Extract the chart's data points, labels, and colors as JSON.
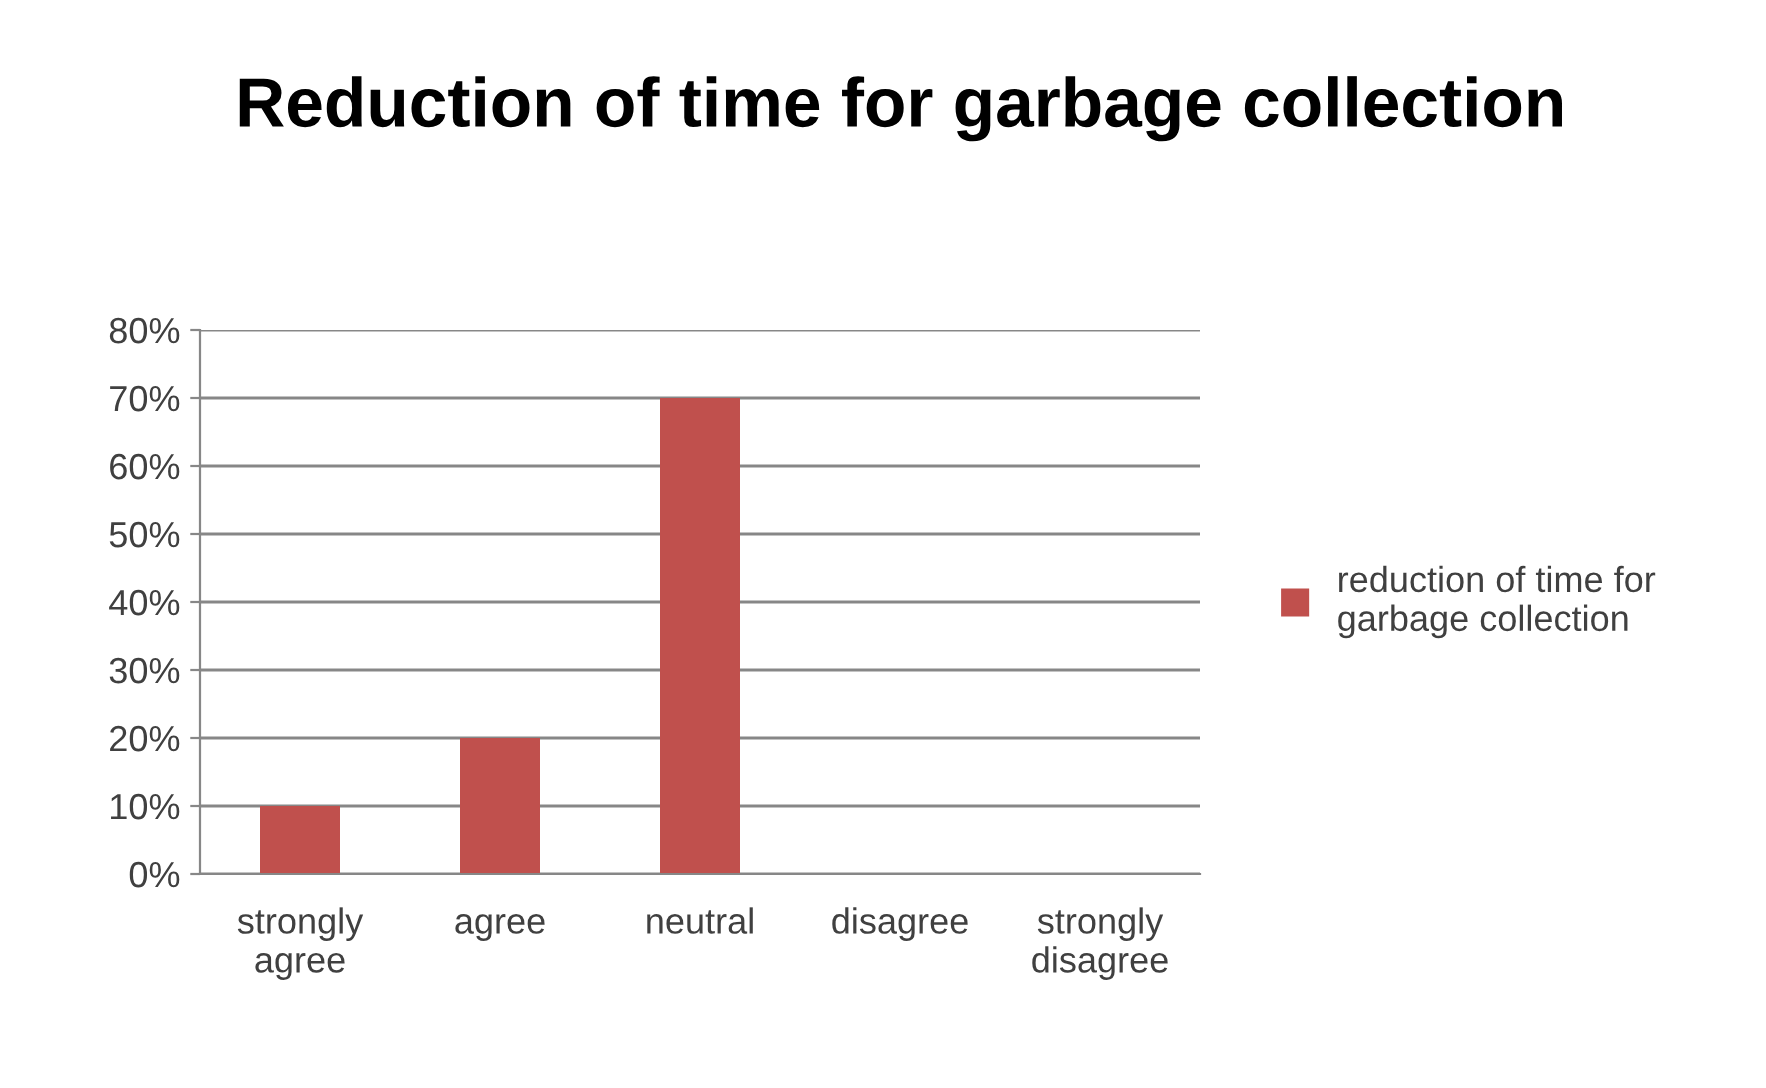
{
  "chart_data": {
    "type": "bar",
    "title": "Reduction of time for garbage collection",
    "categories": [
      "strongly agree",
      "agree",
      "neutral",
      "disagree",
      "strongly disagree"
    ],
    "series": [
      {
        "name": "reduction of time for garbage collection",
        "color": "#c0504d",
        "values": [
          10,
          20,
          70,
          0,
          0
        ]
      }
    ],
    "ylim": [
      0,
      80
    ],
    "yticks": [
      {
        "value": 0,
        "label": "0%"
      },
      {
        "value": 10,
        "label": "10%"
      },
      {
        "value": 20,
        "label": "20%"
      },
      {
        "value": 30,
        "label": "30%"
      },
      {
        "value": 40,
        "label": "40%"
      },
      {
        "value": 50,
        "label": "50%"
      },
      {
        "value": 60,
        "label": "60%"
      },
      {
        "value": 70,
        "label": "70%"
      },
      {
        "value": 80,
        "label": "80%"
      }
    ],
    "grid": "y",
    "legend": "right"
  }
}
